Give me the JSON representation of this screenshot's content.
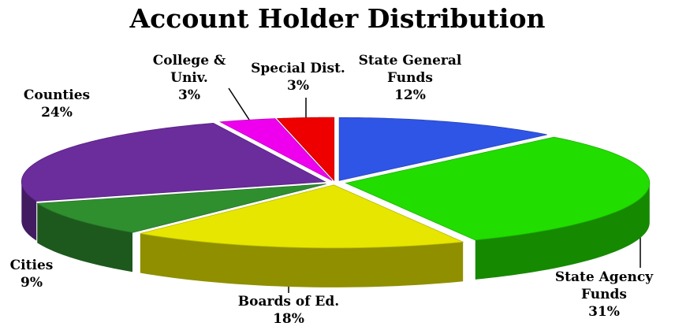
{
  "chart_data": {
    "type": "pie3d",
    "title": "Account Holder Distribution",
    "categories": [
      "State General Funds",
      "State Agency Funds",
      "Boards of Ed.",
      "Cities",
      "Counties",
      "College & Univ.",
      "Special Dist."
    ],
    "values": [
      12,
      31,
      18,
      9,
      24,
      3,
      3
    ],
    "value_labels": [
      "12%",
      "31%",
      "18%",
      "9%",
      "24%",
      "3%",
      "3%"
    ],
    "colors": [
      "#2f55e6",
      "#22dd00",
      "#e6e600",
      "#2f8f2f",
      "#6b2c9c",
      "#ee00ee",
      "#ee0000"
    ]
  }
}
